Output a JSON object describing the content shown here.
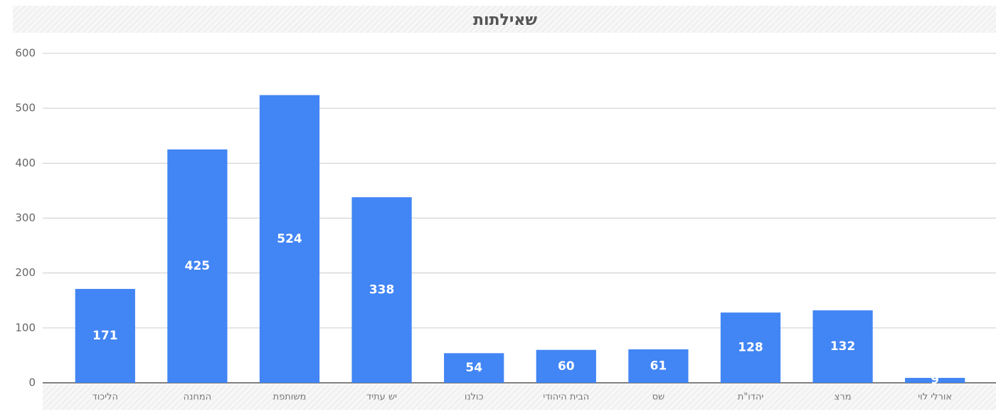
{
  "chart_data": {
    "type": "bar",
    "title": "שאילתות",
    "categories": [
      "הליכוד",
      "המחנה",
      "משותפת",
      "יש עתיד",
      "כולנו",
      "הבית היהודי",
      "שס",
      "יהדו\"ת",
      "מרצ",
      "אורלי לוי"
    ],
    "values": [
      171,
      425,
      524,
      338,
      54,
      60,
      61,
      128,
      132,
      9
    ],
    "color": "#4285f4",
    "ylim": [
      0,
      600
    ],
    "yticks": [
      0,
      100,
      200,
      300,
      400,
      500,
      600
    ],
    "grid": true
  }
}
